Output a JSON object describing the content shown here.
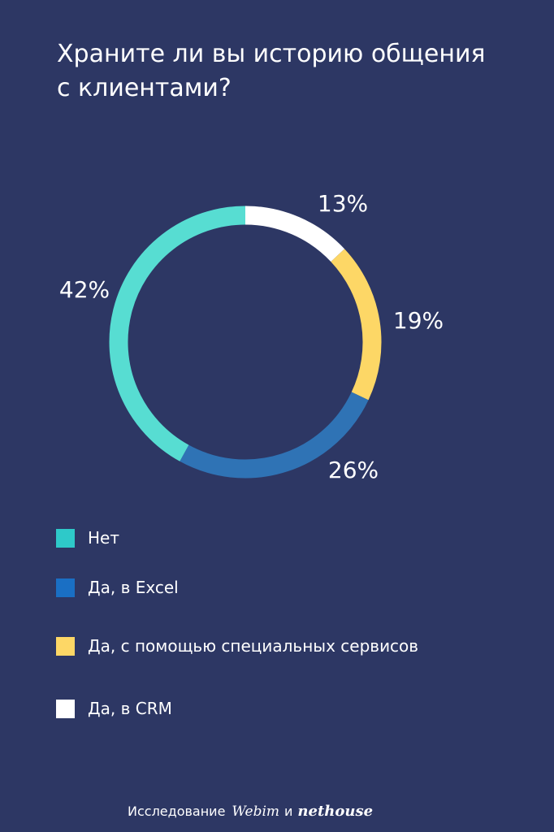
{
  "title_lines": [
    "Храните ли вы историю общения",
    "с клиентами?"
  ],
  "chart_data": {
    "type": "pie",
    "style": "donut",
    "title": "Храните ли вы историю общения с клиентами?",
    "series": [
      {
        "name": "Нет",
        "value": 42,
        "label": "42%",
        "color": "#57ddd2"
      },
      {
        "name": "Да, в Excel",
        "value": 26,
        "label": "26%",
        "color": "#2f73b5"
      },
      {
        "name": "Да, с помощью специальных сервисов",
        "value": 19,
        "label": "19%",
        "color": "#fdd766"
      },
      {
        "name": "Да, в CRM",
        "value": 13,
        "label": "13%",
        "color": "#ffffff"
      }
    ],
    "start": "top, clockwise from Да, в CRM",
    "legend_position": "bottom-left"
  },
  "legend": [
    {
      "label": "Нет",
      "color": "#2ec9c9"
    },
    {
      "label": "Да, в Excel",
      "color": "#1a6fc4"
    },
    {
      "label": "Да, с помощью специальных сервисов",
      "color": "#fdd766"
    },
    {
      "label": "Да, в CRM",
      "color": "#ffffff"
    }
  ],
  "footer": {
    "prefix": "Исследование",
    "brand1": "Webim",
    "conjunction": "и",
    "brand2": "nethouse"
  },
  "colors": {
    "background": "#2d3764",
    "text": "#ffffff"
  }
}
